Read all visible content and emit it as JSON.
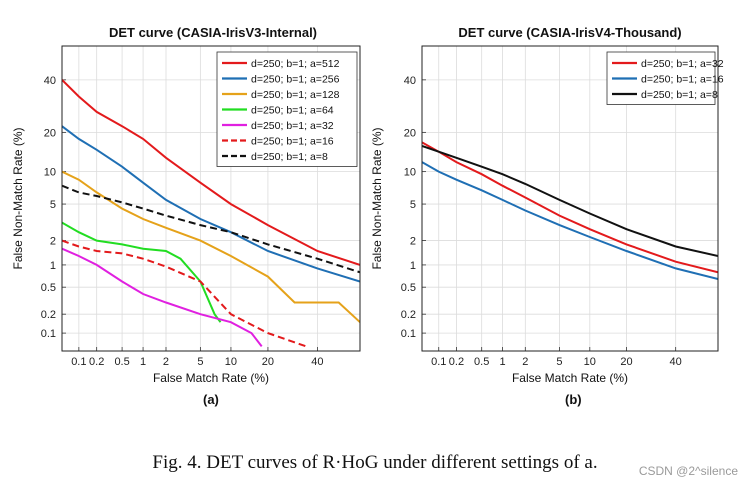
{
  "figure": {
    "caption": "Fig. 4.   DET curves of R·HoG under different settings of a.",
    "watermark": "CSDN @2^silence",
    "panel_labels": [
      "(a)",
      "(b)"
    ]
  },
  "chart_data": [
    {
      "type": "line",
      "title": "DET curve (CASIA-IrisV3-Internal)",
      "xlabel": "False Match Rate (%)",
      "ylabel": "False Non-Match Rate (%)",
      "xscale": "probit",
      "yscale": "probit",
      "xlim": [
        0.05,
        60
      ],
      "ylim": [
        0.05,
        55
      ],
      "xticks": [
        0.1,
        0.2,
        0.5,
        1,
        2,
        5,
        10,
        20,
        40
      ],
      "xtick_labels": [
        "0.1",
        "0.2",
        "0.5",
        "1",
        "2",
        "5",
        "10",
        "20",
        "40"
      ],
      "yticks": [
        0.1,
        0.2,
        0.5,
        1,
        2,
        5,
        10,
        20,
        40
      ],
      "ytick_labels": [
        "0.1",
        "0.2",
        "0.5",
        "1",
        "2",
        "5",
        "10",
        "20",
        "40"
      ],
      "grid": true,
      "legend": "top-right",
      "series": [
        {
          "name": "d=250; b=1; a=512",
          "color": "#e31a1c",
          "dash": "solid",
          "x": [
            0.05,
            0.1,
            0.2,
            0.5,
            1,
            2,
            5,
            10,
            20,
            40,
            60
          ],
          "y": [
            40,
            33,
            27,
            22,
            18,
            13,
            8,
            5,
            3,
            1.5,
            1.0
          ]
        },
        {
          "name": "d=250; b=1; a=256",
          "color": "#1f6fb4",
          "dash": "solid",
          "x": [
            0.05,
            0.1,
            0.2,
            0.5,
            1,
            2,
            5,
            10,
            20,
            40,
            60
          ],
          "y": [
            22,
            18,
            15,
            11,
            8,
            5.5,
            3.5,
            2.5,
            1.5,
            0.9,
            0.6
          ]
        },
        {
          "name": "d=250; b=1; a=128",
          "color": "#e5a21a",
          "dash": "solid",
          "x": [
            0.05,
            0.1,
            0.2,
            0.5,
            1,
            2,
            5,
            10,
            20,
            30,
            50,
            60
          ],
          "y": [
            10,
            8.5,
            6.5,
            4.5,
            3.5,
            2.8,
            2,
            1.3,
            0.7,
            0.3,
            0.3,
            0.15
          ]
        },
        {
          "name": "d=250; b=1; a=64",
          "color": "#22dd22",
          "dash": "solid",
          "x": [
            0.05,
            0.1,
            0.2,
            0.5,
            1,
            2,
            3,
            5,
            7,
            8
          ],
          "y": [
            3.2,
            2.5,
            2,
            1.8,
            1.6,
            1.5,
            1.2,
            0.6,
            0.2,
            0.15
          ]
        },
        {
          "name": "d=250; b=1; a=32",
          "color": "#e020e0",
          "dash": "solid",
          "x": [
            0.05,
            0.1,
            0.2,
            0.5,
            1,
            2,
            5,
            10,
            15,
            18
          ],
          "y": [
            1.6,
            1.3,
            1.0,
            0.6,
            0.4,
            0.3,
            0.2,
            0.15,
            0.1,
            0.06
          ]
        },
        {
          "name": "d=250; b=1; a=16",
          "color": "#e31a1c",
          "dash": "dashed",
          "x": [
            0.05,
            0.1,
            0.2,
            0.5,
            1,
            2,
            5,
            10,
            20,
            35
          ],
          "y": [
            2,
            1.7,
            1.5,
            1.4,
            1.2,
            0.95,
            0.6,
            0.2,
            0.1,
            0.06
          ]
        },
        {
          "name": "d=250; b=1; a=8",
          "color": "#111111",
          "dash": "dashed",
          "x": [
            0.05,
            0.1,
            0.2,
            0.5,
            1,
            2,
            5,
            10,
            20,
            40,
            60
          ],
          "y": [
            7.5,
            6.5,
            6,
            5.2,
            4.5,
            3.8,
            3,
            2.5,
            1.8,
            1.2,
            0.8
          ]
        }
      ]
    },
    {
      "type": "line",
      "title": "DET curve (CASIA-IrisV4-Thousand)",
      "xlabel": "False Match Rate (%)",
      "ylabel": "False Non-Match Rate (%)",
      "xscale": "probit",
      "yscale": "probit",
      "xlim": [
        0.05,
        60
      ],
      "ylim": [
        0.05,
        55
      ],
      "xticks": [
        0.1,
        0.2,
        0.5,
        1,
        2,
        5,
        10,
        20,
        40
      ],
      "xtick_labels": [
        "0.1",
        "0.2",
        "0.5",
        "1",
        "2",
        "5",
        "10",
        "20",
        "40"
      ],
      "yticks": [
        0.1,
        0.2,
        0.5,
        1,
        2,
        5,
        10,
        20,
        40
      ],
      "ytick_labels": [
        "0.1",
        "0.2",
        "0.5",
        "1",
        "2",
        "5",
        "10",
        "20",
        "40"
      ],
      "grid": true,
      "legend": "top-right",
      "series": [
        {
          "name": "d=250; b=1; a=32",
          "color": "#e31a1c",
          "dash": "solid",
          "x": [
            0.05,
            0.1,
            0.2,
            0.5,
            1,
            2,
            5,
            10,
            20,
            40,
            60
          ],
          "y": [
            17,
            14.5,
            12,
            9.5,
            7.5,
            5.8,
            3.8,
            2.7,
            1.8,
            1.1,
            0.8
          ]
        },
        {
          "name": "d=250; b=1; a=16",
          "color": "#1f6fb4",
          "dash": "solid",
          "x": [
            0.05,
            0.1,
            0.2,
            0.5,
            1,
            2,
            5,
            10,
            20,
            40,
            60
          ],
          "y": [
            12,
            10,
            8.5,
            6.8,
            5.5,
            4.3,
            3,
            2.2,
            1.5,
            0.9,
            0.65
          ]
        },
        {
          "name": "d=250; b=1; a=8",
          "color": "#111111",
          "dash": "solid",
          "x": [
            0.05,
            0.1,
            0.2,
            0.5,
            1,
            2,
            5,
            10,
            20,
            40,
            60
          ],
          "y": [
            16,
            14.5,
            13,
            11,
            9.5,
            7.8,
            5.5,
            4,
            2.7,
            1.7,
            1.3
          ]
        }
      ]
    }
  ]
}
